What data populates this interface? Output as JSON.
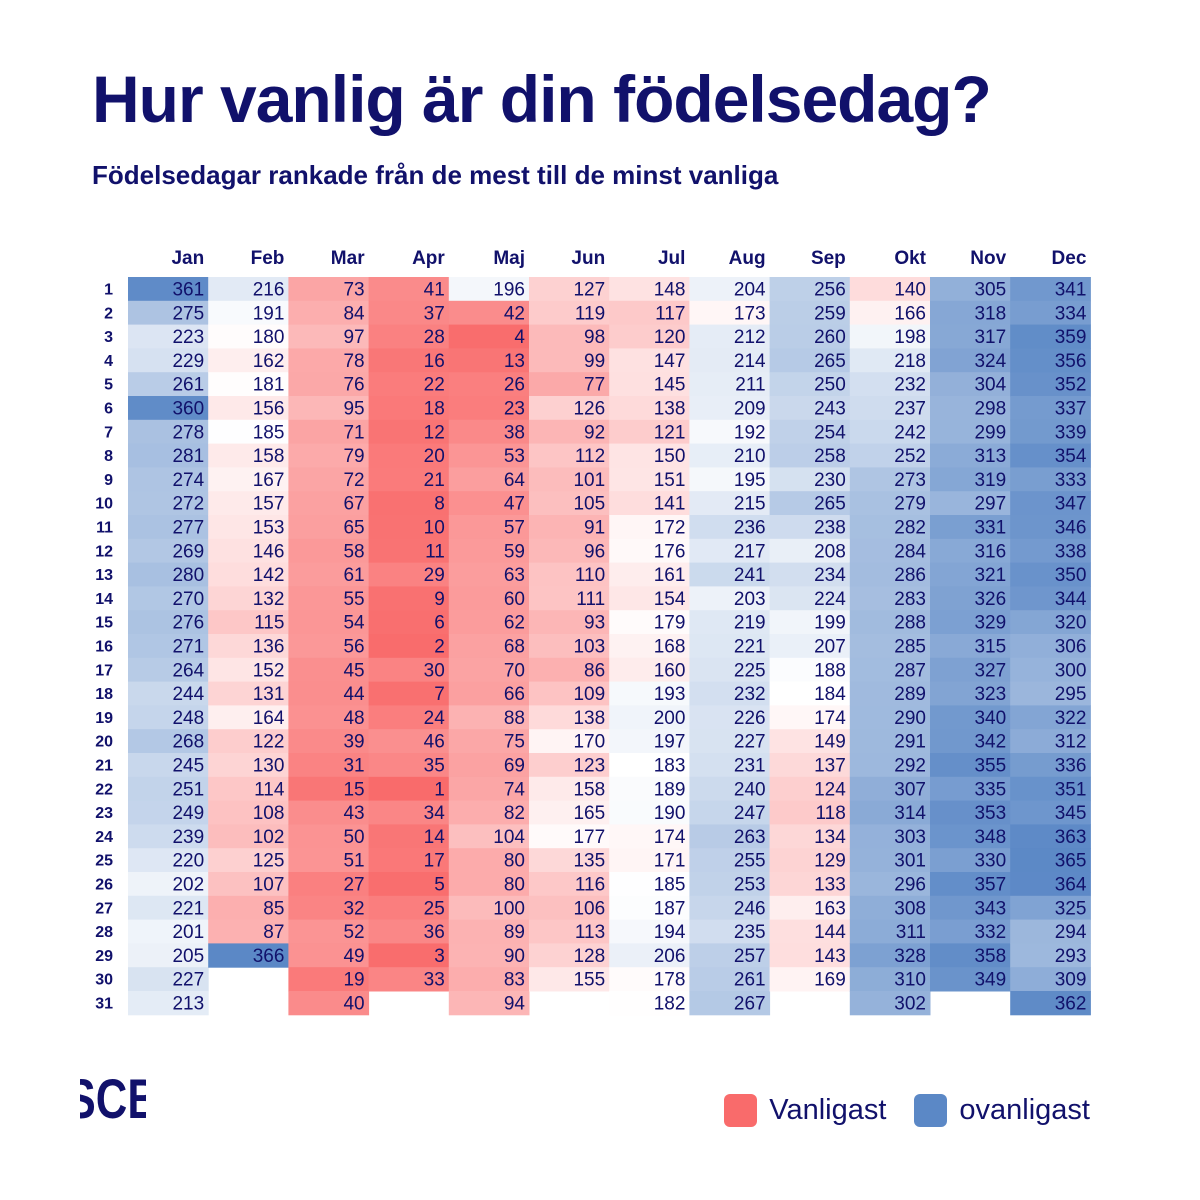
{
  "header": {
    "title": "Hur vanlig är din födelsedag?",
    "subtitle": "Födelsedagar rankade från de mest till de minst vanliga"
  },
  "logo": {
    "text": "SCB"
  },
  "legend": {
    "items": [
      {
        "label": "Vanligast",
        "color": "#F96B6B"
      },
      {
        "label": "ovanligast",
        "color": "#5B88C6"
      }
    ]
  },
  "chart_data": {
    "type": "heatmap",
    "title": "Hur vanlig är din födelsedag?",
    "subtitle": "Födelsedagar rankade från de mest till de minst vanliga",
    "x_categories": [
      "Jan",
      "Feb",
      "Mar",
      "Apr",
      "Maj",
      "Jun",
      "Jul",
      "Aug",
      "Sep",
      "Okt",
      "Nov",
      "Dec"
    ],
    "y_categories": [
      "1",
      "2",
      "3",
      "4",
      "5",
      "6",
      "7",
      "8",
      "9",
      "10",
      "11",
      "12",
      "13",
      "14",
      "15",
      "16",
      "17",
      "18",
      "19",
      "20",
      "21",
      "22",
      "23",
      "24",
      "25",
      "26",
      "27",
      "28",
      "29",
      "30",
      "31"
    ],
    "value_range": [
      1,
      366
    ],
    "color_scale": {
      "low": "#F96B6B",
      "mid": "#FFFFFF",
      "high": "#5B88C6"
    },
    "legend": [
      {
        "label": "Vanligast",
        "meaning": "rank 1"
      },
      {
        "label": "ovanligast",
        "meaning": "rank 366"
      }
    ],
    "series": [
      {
        "name": "Jan",
        "values": [
          361,
          275,
          223,
          229,
          261,
          360,
          278,
          281,
          274,
          272,
          277,
          269,
          280,
          270,
          276,
          271,
          264,
          244,
          248,
          268,
          245,
          251,
          249,
          239,
          220,
          202,
          221,
          201,
          205,
          227,
          213
        ]
      },
      {
        "name": "Feb",
        "values": [
          216,
          191,
          180,
          162,
          181,
          156,
          185,
          158,
          167,
          157,
          153,
          146,
          142,
          132,
          115,
          136,
          152,
          131,
          164,
          122,
          130,
          114,
          108,
          102,
          125,
          107,
          85,
          87,
          366
        ]
      },
      {
        "name": "Mar",
        "values": [
          73,
          84,
          97,
          78,
          76,
          95,
          71,
          79,
          72,
          67,
          65,
          58,
          61,
          55,
          54,
          56,
          45,
          44,
          48,
          39,
          31,
          15,
          43,
          50,
          51,
          27,
          32,
          52,
          49,
          19,
          40
        ]
      },
      {
        "name": "Apr",
        "values": [
          41,
          37,
          28,
          16,
          22,
          18,
          12,
          20,
          21,
          8,
          10,
          11,
          29,
          9,
          6,
          2,
          30,
          7,
          24,
          46,
          35,
          1,
          34,
          14,
          17,
          5,
          25,
          36,
          3,
          33
        ]
      },
      {
        "name": "Maj",
        "values": [
          196,
          42,
          4,
          13,
          26,
          23,
          38,
          53,
          64,
          47,
          57,
          59,
          63,
          60,
          62,
          68,
          70,
          66,
          88,
          75,
          69,
          74,
          82,
          104,
          80,
          80,
          100,
          89,
          90,
          83,
          94
        ]
      },
      {
        "name": "Jun",
        "values": [
          127,
          119,
          98,
          99,
          77,
          126,
          92,
          112,
          101,
          105,
          91,
          96,
          110,
          111,
          93,
          103,
          86,
          109,
          138,
          170,
          123,
          158,
          165,
          177,
          135,
          116,
          106,
          113,
          128,
          155
        ]
      },
      {
        "name": "Jul",
        "values": [
          148,
          117,
          120,
          147,
          145,
          138,
          121,
          150,
          151,
          141,
          172,
          176,
          161,
          154,
          179,
          168,
          160,
          193,
          200,
          197,
          183,
          189,
          190,
          174,
          171,
          185,
          187,
          194,
          206,
          178,
          182
        ]
      },
      {
        "name": "Aug",
        "values": [
          204,
          173,
          212,
          214,
          211,
          209,
          192,
          210,
          195,
          215,
          236,
          217,
          241,
          203,
          219,
          221,
          225,
          232,
          226,
          227,
          231,
          240,
          247,
          263,
          255,
          253,
          246,
          235,
          257,
          261,
          267
        ]
      },
      {
        "name": "Sep",
        "values": [
          256,
          259,
          260,
          265,
          250,
          243,
          254,
          258,
          230,
          265,
          238,
          208,
          234,
          224,
          199,
          207,
          188,
          184,
          174,
          149,
          137,
          124,
          118,
          134,
          129,
          133,
          163,
          144,
          143,
          169
        ]
      },
      {
        "name": "Okt",
        "values": [
          140,
          166,
          198,
          218,
          232,
          237,
          242,
          252,
          273,
          279,
          282,
          284,
          286,
          283,
          288,
          285,
          287,
          289,
          290,
          291,
          292,
          307,
          314,
          303,
          301,
          296,
          308,
          311,
          328,
          310,
          302
        ]
      },
      {
        "name": "Nov",
        "values": [
          305,
          318,
          317,
          324,
          304,
          298,
          299,
          313,
          319,
          297,
          331,
          316,
          321,
          326,
          329,
          315,
          327,
          323,
          340,
          342,
          355,
          335,
          353,
          348,
          330,
          357,
          343,
          332,
          358,
          349
        ]
      },
      {
        "name": "Dec",
        "values": [
          341,
          334,
          359,
          356,
          352,
          337,
          339,
          354,
          333,
          347,
          346,
          338,
          350,
          344,
          320,
          306,
          300,
          295,
          322,
          312,
          336,
          351,
          345,
          363,
          365,
          364,
          325,
          294,
          293,
          309,
          362
        ]
      }
    ]
  }
}
